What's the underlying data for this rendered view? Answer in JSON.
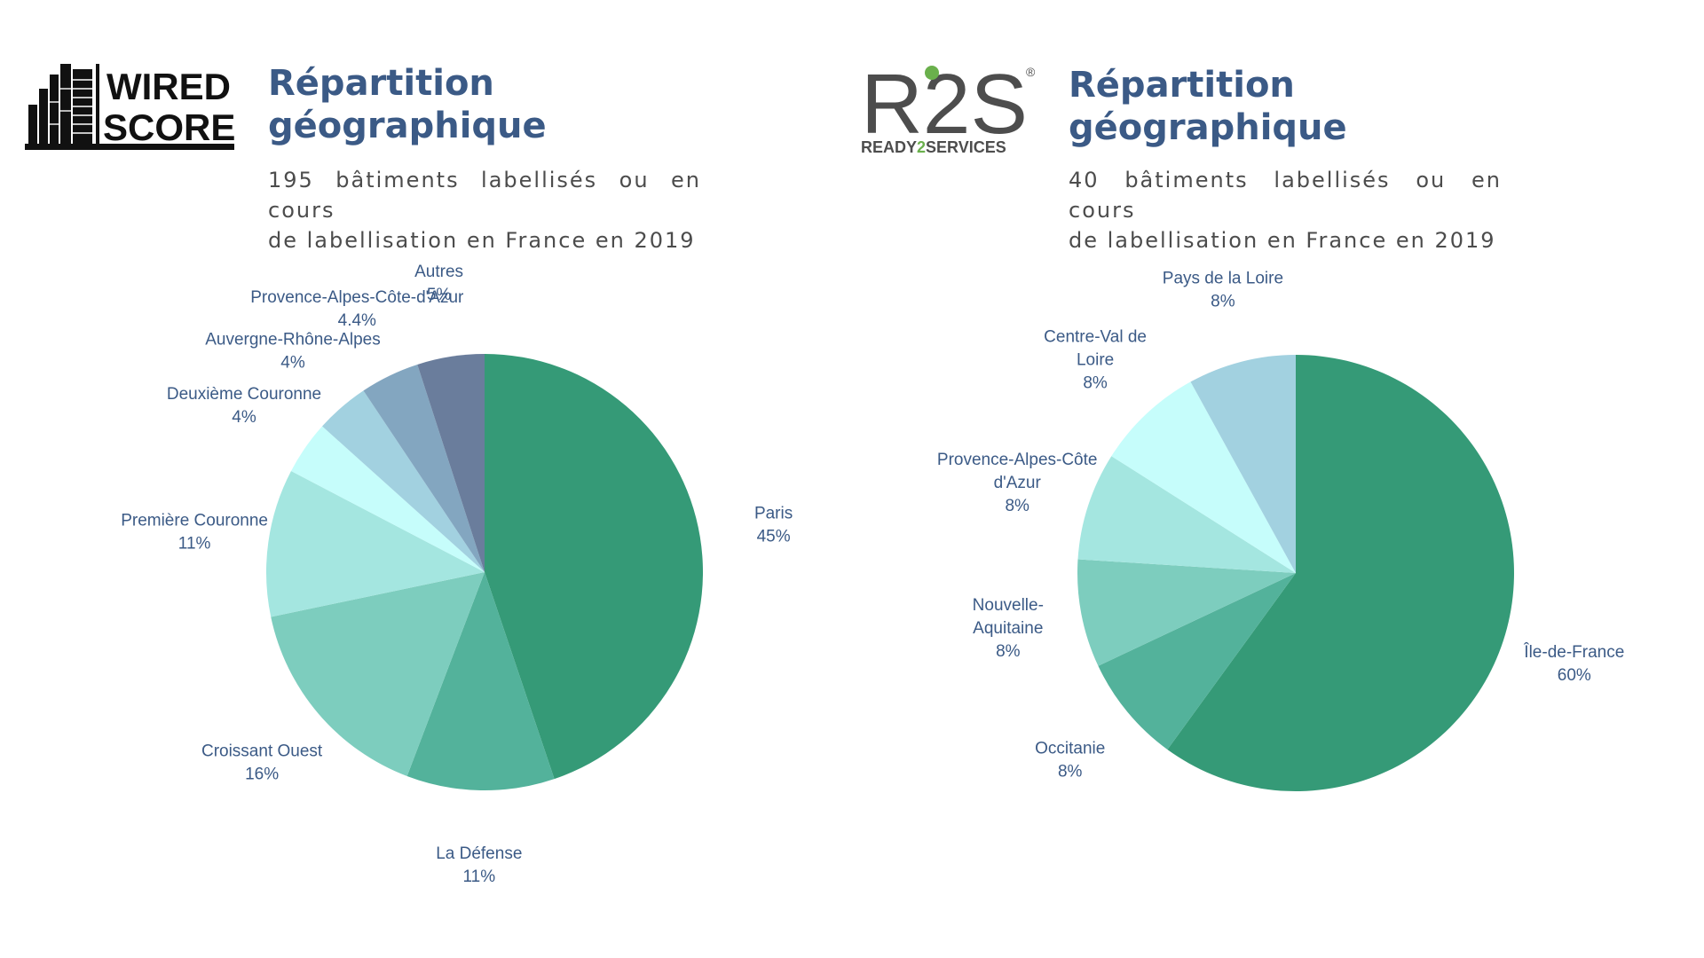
{
  "panels": [
    {
      "logo": {
        "icon": "wiredscore-building-icon",
        "line1": "WIRED",
        "line2": "SCORE"
      },
      "title": [
        "Répartition",
        "géographique"
      ],
      "subtitle": [
        "195 bâtiments labellisés ou en cours",
        "de labellisation en France en 2019"
      ]
    },
    {
      "logo": {
        "icon": "r2s-logo-icon",
        "main": "R2S",
        "registered": "®",
        "tagline_left": "READY",
        "tagline_digit": "2",
        "tagline_right": "SERVICES",
        "accent": "#6ab04c"
      },
      "title": [
        "Répartition",
        "géographique"
      ],
      "subtitle": [
        "40 bâtiments labellisés ou en cours",
        "de labellisation en France en 2019"
      ]
    }
  ],
  "chart_data": [
    {
      "type": "pie",
      "start_angle_deg": 0,
      "direction": "clockwise",
      "slices": [
        {
          "label": [
            "Paris"
          ],
          "value_label": "45%",
          "value": 45,
          "color": "#359a77"
        },
        {
          "label": [
            "La Défense"
          ],
          "value_label": "11%",
          "value": 11,
          "color": "#53b29b"
        },
        {
          "label": [
            "Croissant Ouest"
          ],
          "value_label": "16%",
          "value": 16,
          "color": "#7dcdbe"
        },
        {
          "label": [
            "Première Couronne"
          ],
          "value_label": "11%",
          "value": 11,
          "color": "#a4e6e0"
        },
        {
          "label": [
            "Deuxième Couronne"
          ],
          "value_label": "4%",
          "value": 4,
          "color": "#c6fdfb"
        },
        {
          "label": [
            "Auvergne-Rhône-Alpes"
          ],
          "value_label": "4%",
          "value": 4,
          "color": "#a2d1e0"
        },
        {
          "label": [
            "Provence-Alpes-Côte-d'Azur"
          ],
          "value_label": "4.4%",
          "value": 4.4,
          "color": "#83a6c0"
        },
        {
          "label": [
            "Autres"
          ],
          "value_label": "5%",
          "value": 5,
          "color": "#6a7d9c"
        }
      ]
    },
    {
      "type": "pie",
      "start_angle_deg": 0,
      "direction": "clockwise",
      "slices": [
        {
          "label": [
            "Île-de-France"
          ],
          "value_label": "60%",
          "value": 60,
          "color": "#359a77"
        },
        {
          "label": [
            "Occitanie"
          ],
          "value_label": "8%",
          "value": 8,
          "color": "#53b29b"
        },
        {
          "label": [
            "Nouvelle-",
            "Aquitaine"
          ],
          "value_label": "8%",
          "value": 8,
          "color": "#7dcdbe"
        },
        {
          "label": [
            "Provence-Alpes-Côte",
            "d'Azur"
          ],
          "value_label": "8%",
          "value": 8,
          "color": "#a4e6e0"
        },
        {
          "label": [
            "Centre-Val de",
            "Loire"
          ],
          "value_label": "8%",
          "value": 8,
          "color": "#c6fdfb"
        },
        {
          "label": [
            "Pays de la Loire"
          ],
          "value_label": "8%",
          "value": 8,
          "color": "#a2d1e0"
        }
      ]
    }
  ]
}
